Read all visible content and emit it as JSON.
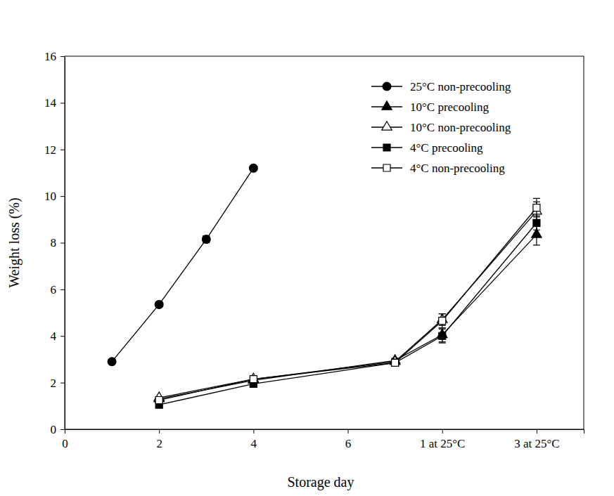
{
  "chart_data": {
    "type": "line",
    "x_label": "Storage day",
    "y_label": "Weight loss (%)",
    "xlim": [
      0,
      11
    ],
    "xticks": [
      0,
      2,
      4,
      6,
      {
        "value": 8,
        "label": "1 at 25°C"
      },
      {
        "value": 10,
        "label": "3 at 25°C"
      }
    ],
    "ylim": [
      0,
      16
    ],
    "yticks": [
      0,
      2,
      4,
      6,
      8,
      10,
      12,
      14,
      16
    ],
    "legend": "upper right",
    "series": [
      {
        "name": "25°C non-precooling",
        "color": "#000000",
        "marker": "circle",
        "line_style": "solid",
        "x": [
          1,
          2,
          3,
          4
        ],
        "values": [
          2.9,
          5.35,
          8.15,
          11.2
        ],
        "errors": [
          0.05,
          0.1,
          0.15,
          0.08
        ]
      },
      {
        "name": "10°C precooling",
        "color": "#000000",
        "marker": "triangle",
        "line_style": "solid",
        "x": [
          2,
          4,
          7,
          8,
          10
        ],
        "values": [
          1.3,
          2.1,
          2.95,
          4.05,
          8.35
        ],
        "errors": [
          0.05,
          0.05,
          0.1,
          0.3,
          0.45
        ]
      },
      {
        "name": "10°C non-precooling",
        "color": "#000000",
        "marker": "triangle-open",
        "line_style": "solid",
        "x": [
          2,
          4,
          7,
          8,
          10
        ],
        "values": [
          1.35,
          2.15,
          2.9,
          4.7,
          9.35
        ],
        "errors": [
          0.05,
          0.05,
          0.1,
          0.25,
          0.4
        ]
      },
      {
        "name": "4°C precooling",
        "color": "#000000",
        "marker": "square",
        "line_style": "solid",
        "x": [
          2,
          4,
          7,
          8,
          10
        ],
        "values": [
          1.05,
          1.95,
          2.85,
          4.0,
          8.85
        ],
        "errors": [
          0.05,
          0.05,
          0.1,
          0.3,
          0.3
        ]
      },
      {
        "name": "4°C non-precooling",
        "color": "#000000",
        "marker": "square-open",
        "line_style": "solid",
        "x": [
          2,
          4,
          7,
          8,
          10
        ],
        "values": [
          1.25,
          2.15,
          2.85,
          4.65,
          9.5
        ],
        "errors": [
          0.05,
          0.05,
          0.15,
          0.3,
          0.4
        ]
      }
    ]
  }
}
